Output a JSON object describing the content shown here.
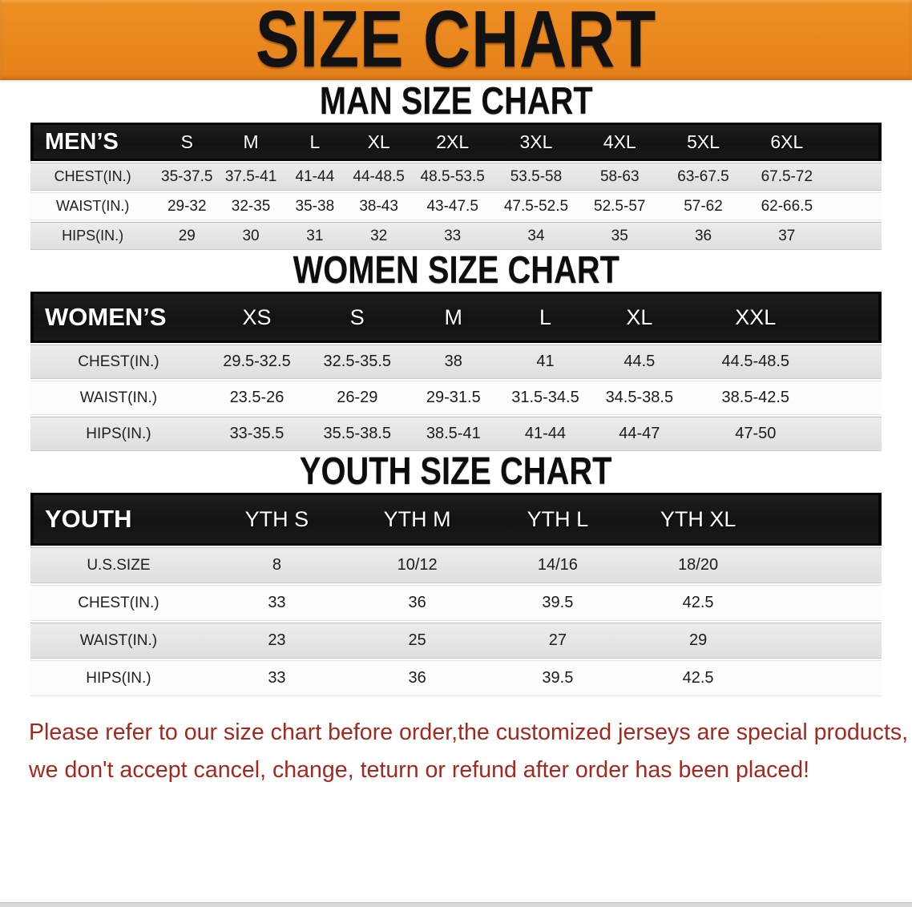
{
  "banner": {
    "title": "SIZE CHART",
    "background_color": "#e8871f",
    "text_color": "#121212"
  },
  "sections": [
    {
      "id": "men",
      "title": "MAN SIZE CHART",
      "table": {
        "corner_label": "MEN’S",
        "columns": [
          "S",
          "M",
          "L",
          "XL",
          "2XL",
          "3XL",
          "4XL",
          "5XL",
          "6XL"
        ],
        "rows": [
          {
            "label": "CHEST(IN.)",
            "values": [
              "35-37.5",
              "37.5-41",
              "41-44",
              "44-48.5",
              "48.5-53.5",
              "53.5-58",
              "58-63",
              "63-67.5",
              "67.5-72"
            ]
          },
          {
            "label": "WAIST(IN.)",
            "values": [
              "29-32",
              "32-35",
              "35-38",
              "38-43",
              "43-47.5",
              "47.5-52.5",
              "52.5-57",
              "57-62",
              "62-66.5"
            ]
          },
          {
            "label": "HIPS(IN.)",
            "values": [
              "29",
              "30",
              "31",
              "32",
              "33",
              "34",
              "35",
              "36",
              "37"
            ]
          }
        ]
      }
    },
    {
      "id": "women",
      "title": "WOMEN SIZE CHART",
      "table": {
        "corner_label": "WOMEN’S",
        "columns": [
          "XS",
          "S",
          "M",
          "L",
          "XL",
          "XXL"
        ],
        "rows": [
          {
            "label": "CHEST(IN.)",
            "values": [
              "29.5-32.5",
              "32.5-35.5",
              "38",
              "41",
              "44.5",
              "44.5-48.5"
            ]
          },
          {
            "label": "WAIST(IN.)",
            "values": [
              "23.5-26",
              "26-29",
              "29-31.5",
              "31.5-34.5",
              "34.5-38.5",
              "38.5-42.5"
            ]
          },
          {
            "label": "HIPS(IN.)",
            "values": [
              "33-35.5",
              "35.5-38.5",
              "38.5-41",
              "41-44",
              "44-47",
              "47-50"
            ]
          }
        ]
      }
    },
    {
      "id": "youth",
      "title": "YOUTH SIZE CHART",
      "table": {
        "corner_label": "YOUTH",
        "columns": [
          "YTH S",
          "YTH M",
          "YTH L",
          "YTH XL"
        ],
        "rows": [
          {
            "label": "U.S.SIZE",
            "values": [
              "8",
              "10/12",
              "14/16",
              "18/20"
            ]
          },
          {
            "label": "CHEST(IN.)",
            "values": [
              "33",
              "36",
              "39.5",
              "42.5"
            ]
          },
          {
            "label": "WAIST(IN.)",
            "values": [
              "23",
              "25",
              "27",
              "29"
            ]
          },
          {
            "label": "HIPS(IN.)",
            "values": [
              "33",
              "36",
              "39.5",
              "42.5"
            ]
          }
        ]
      }
    }
  ],
  "disclaimer": {
    "line1": "Please refer to our size chart before order,the customized jerseys are special products,",
    "line2": "we don't accept cancel, change, teturn or refund after order has been placed!",
    "text_color": "#a5281f"
  }
}
